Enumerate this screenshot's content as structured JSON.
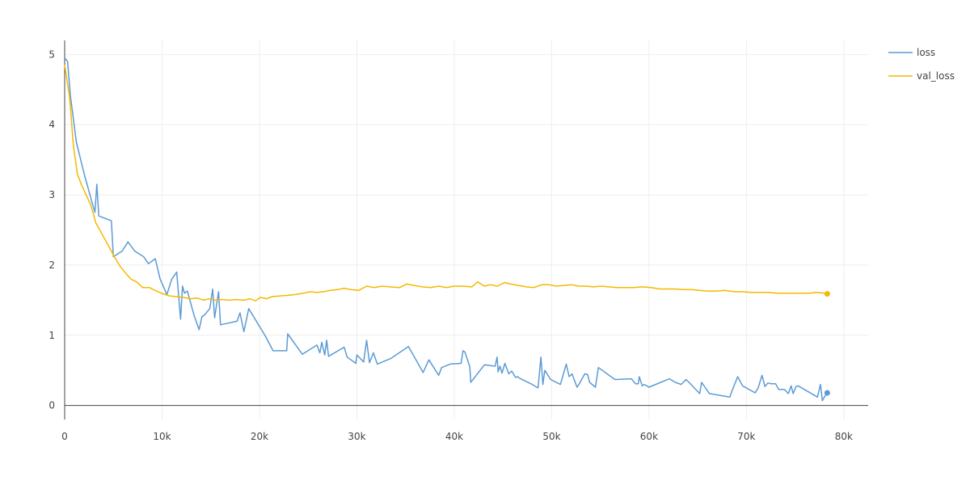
{
  "chart_data": {
    "type": "line",
    "title": "",
    "xlabel": "",
    "ylabel": "",
    "xlim": [
      0,
      82500
    ],
    "ylim": [
      -0.2,
      5.2
    ],
    "x_ticks": [
      0,
      10000,
      20000,
      30000,
      40000,
      50000,
      60000,
      70000,
      80000
    ],
    "x_tick_labels": [
      "0",
      "10k",
      "20k",
      "30k",
      "40k",
      "50k",
      "60k",
      "70k",
      "80k"
    ],
    "y_ticks": [
      0,
      1,
      2,
      3,
      4,
      5
    ],
    "y_tick_labels": [
      "0",
      "1",
      "2",
      "3",
      "4",
      "5"
    ],
    "grid": true,
    "legend": "right",
    "series": [
      {
        "name": "loss",
        "color": "#5b9bd5",
        "x": [
          0,
          300,
          600,
          1200,
          2000,
          2800,
          3100,
          3300,
          3500,
          4800,
          5000,
          5900,
          6500,
          7200,
          8100,
          8600,
          9300,
          9800,
          10500,
          11000,
          11500,
          11900,
          12100,
          12300,
          12600,
          13300,
          13800,
          14100,
          14300,
          14900,
          15200,
          15400,
          15800,
          16000,
          17700,
          18000,
          18400,
          18900,
          20600,
          21400,
          22800,
          22900,
          24400,
          25900,
          26200,
          26400,
          26700,
          26900,
          27100,
          28700,
          29000,
          29900,
          30000,
          30700,
          31000,
          31300,
          31700,
          32100,
          33500,
          35300,
          36800,
          37400,
          38400,
          38700,
          39600,
          40700,
          40900,
          41100,
          41600,
          41700,
          43100,
          44200,
          44400,
          44500,
          44700,
          44900,
          45200,
          45600,
          45900,
          46300,
          46500,
          46700,
          48000,
          48600,
          48900,
          49100,
          49300,
          49900,
          50900,
          51500,
          51800,
          52100,
          52600,
          52800,
          53400,
          53700,
          53900,
          54500,
          54800,
          56500,
          58200,
          58600,
          58900,
          59000,
          59300,
          59500,
          59900,
          60000,
          62100,
          62700,
          63300,
          63800,
          64100,
          65200,
          65400,
          66200,
          68300,
          68500,
          69100,
          69600,
          70900,
          71200,
          71600,
          71900,
          72200,
          72500,
          73000,
          73300,
          73900,
          74300,
          74600,
          74800,
          75100,
          75300,
          75800,
          77300,
          77600,
          77800,
          78000,
          78300
        ],
        "values": [
          4.95,
          4.9,
          4.4,
          3.75,
          3.3,
          2.9,
          2.75,
          3.15,
          2.7,
          2.63,
          2.12,
          2.2,
          2.33,
          2.2,
          2.12,
          2.02,
          2.09,
          1.8,
          1.58,
          1.8,
          1.9,
          1.23,
          1.7,
          1.6,
          1.63,
          1.28,
          1.08,
          1.27,
          1.28,
          1.38,
          1.66,
          1.25,
          1.62,
          1.15,
          1.2,
          1.32,
          1.05,
          1.38,
          0.99,
          0.78,
          0.78,
          1.02,
          0.73,
          0.86,
          0.75,
          0.9,
          0.72,
          0.93,
          0.7,
          0.83,
          0.69,
          0.6,
          0.72,
          0.62,
          0.93,
          0.61,
          0.75,
          0.59,
          0.67,
          0.84,
          0.47,
          0.65,
          0.43,
          0.54,
          0.59,
          0.6,
          0.78,
          0.76,
          0.55,
          0.33,
          0.58,
          0.56,
          0.69,
          0.48,
          0.56,
          0.46,
          0.6,
          0.45,
          0.49,
          0.4,
          0.41,
          0.39,
          0.3,
          0.25,
          0.69,
          0.3,
          0.5,
          0.37,
          0.3,
          0.59,
          0.41,
          0.45,
          0.26,
          0.3,
          0.45,
          0.44,
          0.33,
          0.26,
          0.54,
          0.37,
          0.38,
          0.31,
          0.31,
          0.41,
          0.28,
          0.3,
          0.27,
          0.26,
          0.38,
          0.33,
          0.3,
          0.37,
          0.33,
          0.17,
          0.33,
          0.17,
          0.12,
          0.2,
          0.41,
          0.28,
          0.18,
          0.25,
          0.43,
          0.27,
          0.32,
          0.31,
          0.31,
          0.23,
          0.23,
          0.17,
          0.28,
          0.17,
          0.27,
          0.28,
          0.24,
          0.12,
          0.3,
          0.07,
          0.12,
          0.18
        ]
      },
      {
        "name": "val_loss",
        "color": "#f5b800",
        "x": [
          0,
          500,
          900,
          1300,
          1700,
          2200,
          2700,
          3200,
          3800,
          4400,
          5100,
          5700,
          6300,
          6800,
          7400,
          8000,
          8700,
          9400,
          10100,
          10800,
          11500,
          12200,
          12900,
          13600,
          14300,
          14800,
          15500,
          16200,
          16900,
          17600,
          18400,
          19000,
          19600,
          20100,
          20700,
          21300,
          22100,
          23000,
          23700,
          24500,
          25200,
          25900,
          26600,
          27300,
          28000,
          28700,
          29400,
          30200,
          31000,
          31800,
          32600,
          33400,
          34400,
          35100,
          35900,
          36700,
          37600,
          38400,
          39200,
          40000,
          40900,
          41800,
          42400,
          43100,
          43700,
          44400,
          45200,
          45800,
          46600,
          47400,
          48200,
          49000,
          49700,
          50500,
          51300,
          52000,
          52800,
          53500,
          54300,
          55100,
          55900,
          56700,
          57600,
          58400,
          59300,
          60200,
          61100,
          61900,
          62700,
          63500,
          64400,
          65200,
          66000,
          66900,
          67800,
          68700,
          69600,
          70500,
          71400,
          72300,
          73100,
          73900,
          74700,
          75600,
          76400,
          77200,
          78000,
          78300
        ],
        "values": [
          4.85,
          4.4,
          3.7,
          3.3,
          3.15,
          3.0,
          2.85,
          2.6,
          2.45,
          2.3,
          2.12,
          1.98,
          1.88,
          1.8,
          1.76,
          1.68,
          1.68,
          1.63,
          1.59,
          1.56,
          1.55,
          1.54,
          1.52,
          1.53,
          1.5,
          1.52,
          1.5,
          1.51,
          1.5,
          1.51,
          1.5,
          1.52,
          1.49,
          1.54,
          1.52,
          1.55,
          1.56,
          1.57,
          1.58,
          1.6,
          1.62,
          1.61,
          1.62,
          1.64,
          1.65,
          1.67,
          1.65,
          1.64,
          1.7,
          1.68,
          1.7,
          1.69,
          1.68,
          1.73,
          1.71,
          1.69,
          1.68,
          1.7,
          1.68,
          1.7,
          1.7,
          1.69,
          1.76,
          1.7,
          1.72,
          1.7,
          1.75,
          1.73,
          1.71,
          1.69,
          1.68,
          1.72,
          1.72,
          1.7,
          1.71,
          1.72,
          1.7,
          1.7,
          1.69,
          1.7,
          1.69,
          1.68,
          1.68,
          1.68,
          1.69,
          1.68,
          1.66,
          1.66,
          1.66,
          1.65,
          1.65,
          1.64,
          1.63,
          1.63,
          1.64,
          1.62,
          1.62,
          1.61,
          1.61,
          1.61,
          1.6,
          1.6,
          1.6,
          1.6,
          1.6,
          1.61,
          1.6,
          1.59
        ]
      }
    ]
  }
}
